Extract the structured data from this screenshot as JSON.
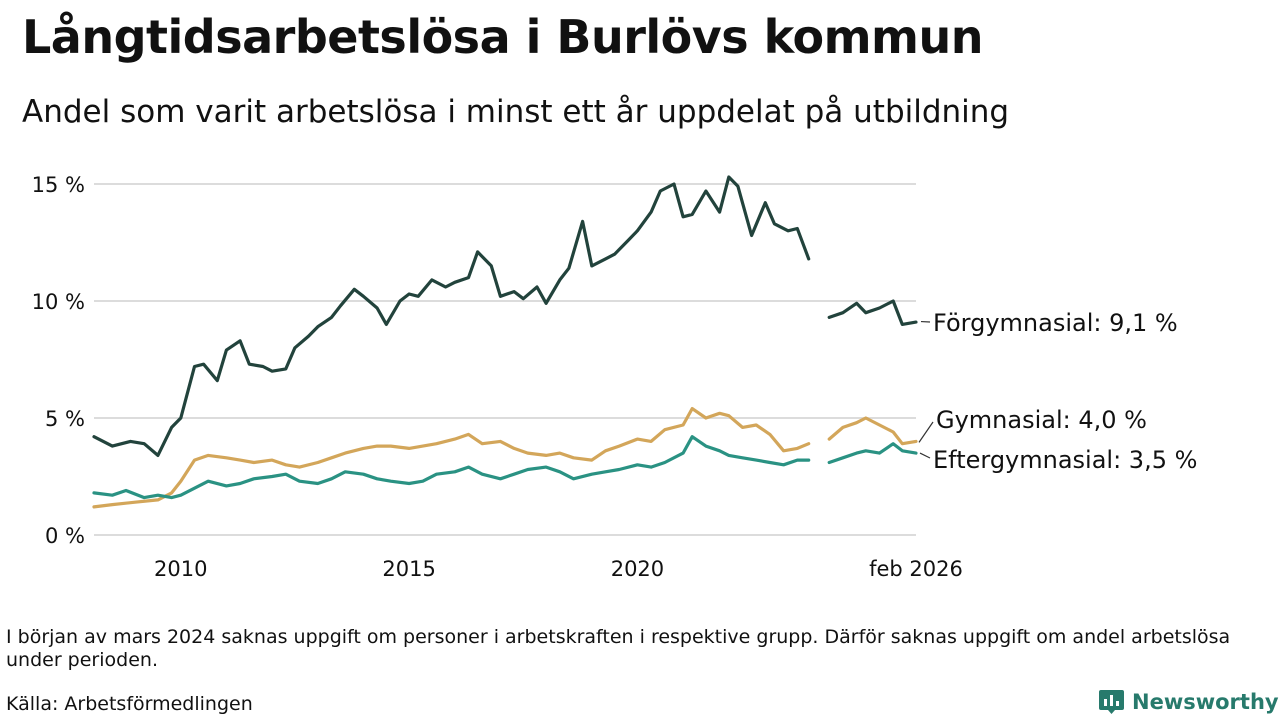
{
  "title": "Långtidsarbetslösa i Burlövs kommun",
  "subtitle": "Andel som varit arbetslösa i minst ett år uppdelat på utbildning",
  "note": "I början av mars 2024 saknas uppgift om personer i arbetskraften i respektive grupp. Därför saknas uppgift om andel arbetslösa under perioden.",
  "source": "Källa: Arbetsförmedlingen",
  "brand": {
    "name": "Newsworthy",
    "color": "#277a6c"
  },
  "chart_data": {
    "type": "line",
    "title": "Långtidsarbetslösa i Burlövs kommun",
    "xlabel": "",
    "ylabel": "",
    "xlim": [
      2008.1,
      2026.1
    ],
    "ylim": [
      0,
      15
    ],
    "grid": true,
    "y_ticks": [
      0,
      5,
      10,
      15
    ],
    "y_tick_labels": [
      "0 %",
      "5 %",
      "10 %",
      "15 %"
    ],
    "x_ticks": [
      2010,
      2015,
      2020,
      2026.1
    ],
    "x_tick_labels": [
      "2010",
      "2015",
      "2020",
      "feb 2026"
    ],
    "gap": [
      2023.75,
      2024.2
    ],
    "series": [
      {
        "name": "Förgymnasial",
        "label": "Förgymnasial: 9,1 %",
        "color": "#22433c",
        "x": [
          2008.1,
          2008.5,
          2008.9,
          2009.2,
          2009.5,
          2009.8,
          2010.0,
          2010.3,
          2010.5,
          2010.8,
          2011.0,
          2011.3,
          2011.5,
          2011.8,
          2012.0,
          2012.3,
          2012.5,
          2012.8,
          2013.0,
          2013.3,
          2013.5,
          2013.8,
          2014.0,
          2014.3,
          2014.5,
          2014.8,
          2015.0,
          2015.2,
          2015.5,
          2015.8,
          2016.0,
          2016.3,
          2016.5,
          2016.8,
          2017.0,
          2017.3,
          2017.5,
          2017.8,
          2018.0,
          2018.3,
          2018.5,
          2018.8,
          2019.0,
          2019.3,
          2019.5,
          2019.8,
          2020.0,
          2020.3,
          2020.5,
          2020.8,
          2021.0,
          2021.2,
          2021.5,
          2021.8,
          2022.0,
          2022.2,
          2022.5,
          2022.8,
          2023.0,
          2023.3,
          2023.5,
          2023.75,
          2024.2,
          2024.5,
          2024.8,
          2025.0,
          2025.3,
          2025.6,
          2025.8,
          2026.1
        ],
        "values": [
          4.2,
          3.8,
          4.0,
          3.9,
          3.4,
          4.6,
          5.0,
          7.2,
          7.3,
          6.6,
          7.9,
          8.3,
          7.3,
          7.2,
          7.0,
          7.1,
          8.0,
          8.5,
          8.9,
          9.3,
          9.8,
          10.5,
          10.2,
          9.7,
          9.0,
          10.0,
          10.3,
          10.2,
          10.9,
          10.6,
          10.8,
          11.0,
          12.1,
          11.5,
          10.2,
          10.4,
          10.1,
          10.6,
          9.9,
          10.9,
          11.4,
          13.4,
          11.5,
          11.8,
          12.0,
          12.6,
          13.0,
          13.8,
          14.7,
          15.0,
          13.6,
          13.7,
          14.7,
          13.8,
          15.3,
          14.9,
          12.8,
          14.2,
          13.3,
          13.0,
          13.1,
          11.8,
          9.3,
          9.5,
          9.9,
          9.5,
          9.7,
          10.0,
          9.0,
          9.1
        ]
      },
      {
        "name": "Gymnasial",
        "label": "Gymnasial: 4,0 %",
        "color": "#d3a65a",
        "x": [
          2008.1,
          2008.5,
          2009.0,
          2009.5,
          2009.8,
          2010.0,
          2010.3,
          2010.6,
          2011.0,
          2011.3,
          2011.6,
          2012.0,
          2012.3,
          2012.6,
          2013.0,
          2013.3,
          2013.6,
          2014.0,
          2014.3,
          2014.6,
          2015.0,
          2015.3,
          2015.6,
          2016.0,
          2016.3,
          2016.6,
          2017.0,
          2017.3,
          2017.6,
          2018.0,
          2018.3,
          2018.6,
          2019.0,
          2019.3,
          2019.6,
          2020.0,
          2020.3,
          2020.6,
          2021.0,
          2021.2,
          2021.5,
          2021.8,
          2022.0,
          2022.3,
          2022.6,
          2022.9,
          2023.2,
          2023.5,
          2023.75,
          2024.2,
          2024.5,
          2024.8,
          2025.0,
          2025.3,
          2025.6,
          2025.8,
          2026.1
        ],
        "values": [
          1.2,
          1.3,
          1.4,
          1.5,
          1.8,
          2.3,
          3.2,
          3.4,
          3.3,
          3.2,
          3.1,
          3.2,
          3.0,
          2.9,
          3.1,
          3.3,
          3.5,
          3.7,
          3.8,
          3.8,
          3.7,
          3.8,
          3.9,
          4.1,
          4.3,
          3.9,
          4.0,
          3.7,
          3.5,
          3.4,
          3.5,
          3.3,
          3.2,
          3.6,
          3.8,
          4.1,
          4.0,
          4.5,
          4.7,
          5.4,
          5.0,
          5.2,
          5.1,
          4.6,
          4.7,
          4.3,
          3.6,
          3.7,
          3.9,
          4.1,
          4.6,
          4.8,
          5.0,
          4.7,
          4.4,
          3.9,
          4.0
        ]
      },
      {
        "name": "Eftergymnasial",
        "label": "Eftergymnasial: 3,5 %",
        "color": "#2a9283",
        "x": [
          2008.1,
          2008.5,
          2008.8,
          2009.2,
          2009.5,
          2009.8,
          2010.0,
          2010.3,
          2010.6,
          2011.0,
          2011.3,
          2011.6,
          2012.0,
          2012.3,
          2012.6,
          2013.0,
          2013.3,
          2013.6,
          2014.0,
          2014.3,
          2014.6,
          2015.0,
          2015.3,
          2015.6,
          2016.0,
          2016.3,
          2016.6,
          2017.0,
          2017.3,
          2017.6,
          2018.0,
          2018.3,
          2018.6,
          2019.0,
          2019.3,
          2019.6,
          2020.0,
          2020.3,
          2020.6,
          2021.0,
          2021.2,
          2021.5,
          2021.8,
          2022.0,
          2022.3,
          2022.6,
          2022.9,
          2023.2,
          2023.5,
          2023.75,
          2024.2,
          2024.5,
          2024.8,
          2025.0,
          2025.3,
          2025.6,
          2025.8,
          2026.1
        ],
        "values": [
          1.8,
          1.7,
          1.9,
          1.6,
          1.7,
          1.6,
          1.7,
          2.0,
          2.3,
          2.1,
          2.2,
          2.4,
          2.5,
          2.6,
          2.3,
          2.2,
          2.4,
          2.7,
          2.6,
          2.4,
          2.3,
          2.2,
          2.3,
          2.6,
          2.7,
          2.9,
          2.6,
          2.4,
          2.6,
          2.8,
          2.9,
          2.7,
          2.4,
          2.6,
          2.7,
          2.8,
          3.0,
          2.9,
          3.1,
          3.5,
          4.2,
          3.8,
          3.6,
          3.4,
          3.3,
          3.2,
          3.1,
          3.0,
          3.2,
          3.2,
          3.1,
          3.3,
          3.5,
          3.6,
          3.5,
          3.9,
          3.6,
          3.5
        ]
      }
    ]
  }
}
